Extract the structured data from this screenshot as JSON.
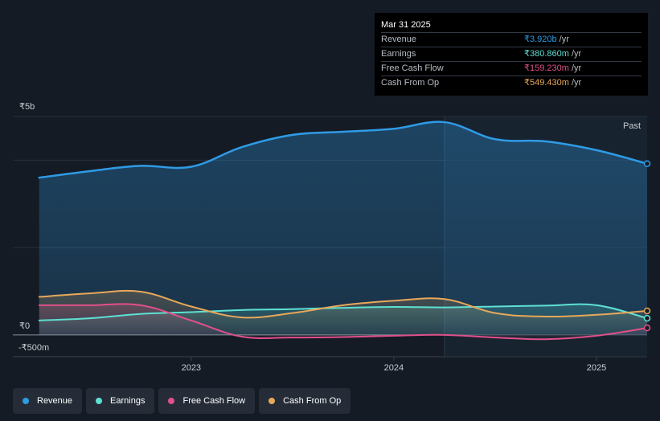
{
  "tooltip": {
    "date": "Mar 31 2025",
    "rows": [
      {
        "label": "Revenue",
        "value": "₹3.920b",
        "unit": "/yr",
        "color": "#2f9be6"
      },
      {
        "label": "Earnings",
        "value": "₹380.860m",
        "unit": "/yr",
        "color": "#5ee0d2"
      },
      {
        "label": "Free Cash Flow",
        "value": "₹159.230m",
        "unit": "/yr",
        "color": "#e0508a"
      },
      {
        "label": "Cash From Op",
        "value": "₹549.430m",
        "unit": "/yr",
        "color": "#e8a85a"
      }
    ]
  },
  "legend": [
    {
      "label": "Revenue",
      "color": "#2f9be6"
    },
    {
      "label": "Earnings",
      "color": "#5ee0d2"
    },
    {
      "label": "Free Cash Flow",
      "color": "#e0508a"
    },
    {
      "label": "Cash From Op",
      "color": "#e8a85a"
    }
  ],
  "chart_data": {
    "type": "area",
    "past_label": "Past",
    "y_ticks": [
      {
        "value": 5000,
        "label": "₹5b"
      },
      {
        "value": 0,
        "label": "₹0"
      },
      {
        "value": -500,
        "label": "-₹500m"
      }
    ],
    "x_ticks": [
      {
        "value": 2023.0,
        "label": "2023"
      },
      {
        "value": 2024.0,
        "label": "2024"
      },
      {
        "value": 2025.0,
        "label": "2025"
      }
    ],
    "xlim": [
      2022.12,
      2025.25
    ],
    "ylim": [
      -500,
      5000
    ],
    "forecast_divider": 2024.25,
    "series": [
      {
        "name": "Revenue",
        "color": "#2f9be6",
        "x": [
          2022.25,
          2022.5,
          2022.75,
          2023.0,
          2023.25,
          2023.5,
          2023.75,
          2024.0,
          2024.25,
          2024.5,
          2024.75,
          2025.0,
          2025.25
        ],
        "y": [
          3600,
          3750,
          3870,
          3850,
          4300,
          4580,
          4650,
          4720,
          4870,
          4480,
          4430,
          4230,
          3920
        ]
      },
      {
        "name": "Earnings",
        "color": "#5ee0d2",
        "x": [
          2022.25,
          2022.5,
          2022.75,
          2023.0,
          2023.25,
          2023.5,
          2023.75,
          2024.0,
          2024.25,
          2024.5,
          2024.75,
          2025.0,
          2025.25
        ],
        "y": [
          330,
          380,
          480,
          520,
          570,
          590,
          620,
          640,
          630,
          650,
          670,
          680,
          380.86
        ]
      },
      {
        "name": "Free Cash Flow",
        "color": "#e0508a",
        "x": [
          2022.25,
          2022.5,
          2022.75,
          2023.0,
          2023.25,
          2023.5,
          2023.75,
          2024.0,
          2024.25,
          2024.5,
          2024.75,
          2025.0,
          2025.25
        ],
        "y": [
          680,
          680,
          680,
          330,
          -40,
          -60,
          -50,
          -20,
          0,
          -60,
          -100,
          -20,
          159.23
        ]
      },
      {
        "name": "Cash From Op",
        "color": "#e8a85a",
        "x": [
          2022.25,
          2022.5,
          2022.75,
          2023.0,
          2023.25,
          2023.5,
          2023.75,
          2024.0,
          2024.25,
          2024.5,
          2024.75,
          2025.0,
          2025.25
        ],
        "y": [
          870,
          950,
          990,
          650,
          400,
          500,
          680,
          780,
          820,
          500,
          420,
          460,
          549.43
        ]
      }
    ]
  }
}
